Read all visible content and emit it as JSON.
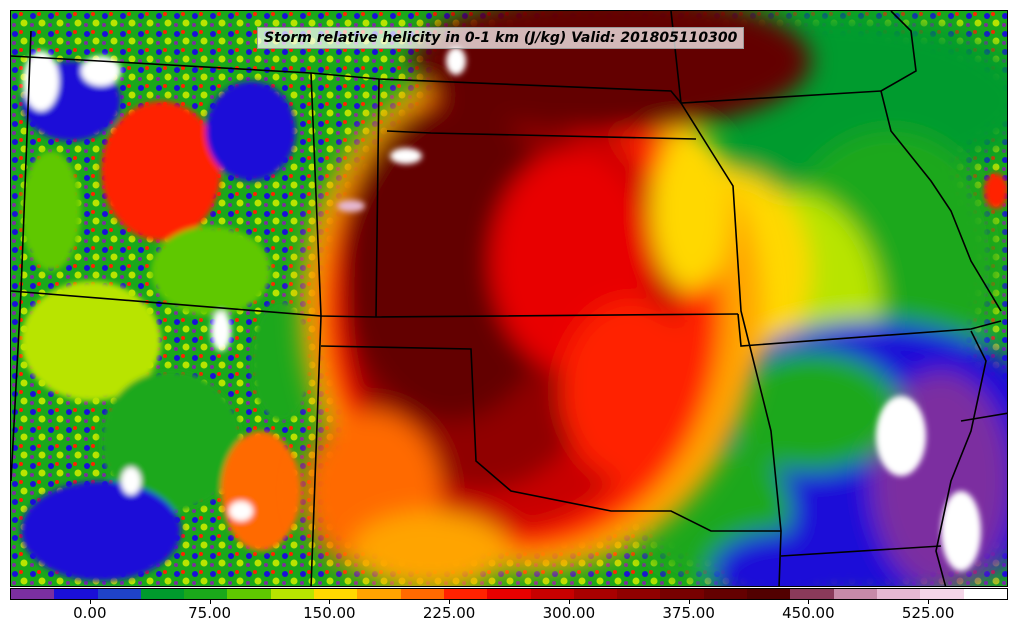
{
  "title": "Storm relative helicity in 0-1 km (J/kg) Valid: 201805110300",
  "legend": {
    "colors": [
      "#7b2fa0",
      "#1a0fd8",
      "#1f43c8",
      "#009b2d",
      "#1aa81a",
      "#5fc800",
      "#b8e400",
      "#ffd800",
      "#ffa400",
      "#ff6a00",
      "#ff2200",
      "#e80000",
      "#c80000",
      "#a80000",
      "#900000",
      "#780000",
      "#640000",
      "#520000",
      "#8a3a5a",
      "#c78aa8",
      "#e6b8d2",
      "#f4d6e8",
      "#ffffff"
    ],
    "ticks": [
      {
        "label": "0.00",
        "value": 0
      },
      {
        "label": "75.00",
        "value": 75
      },
      {
        "label": "150.00",
        "value": 150
      },
      {
        "label": "225.00",
        "value": 225
      },
      {
        "label": "300.00",
        "value": 300
      },
      {
        "label": "375.00",
        "value": 375
      },
      {
        "label": "450.00",
        "value": 450
      },
      {
        "label": "525.00",
        "value": 525
      }
    ],
    "min": -50,
    "max": 575
  }
}
